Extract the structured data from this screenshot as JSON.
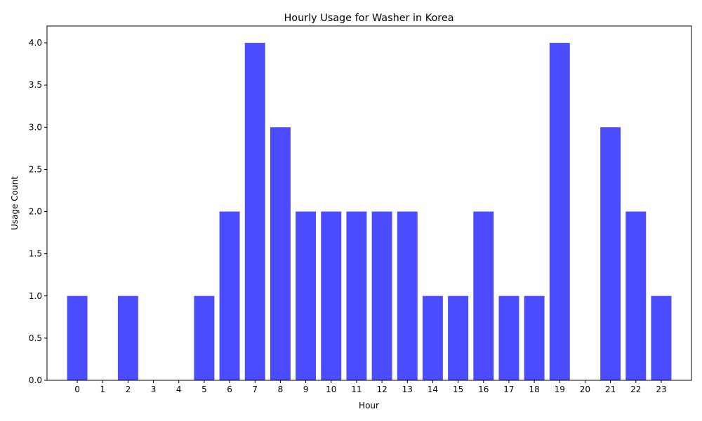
{
  "chart_data": {
    "type": "bar",
    "title": "Hourly Usage for Washer in Korea",
    "xlabel": "Hour",
    "ylabel": "Usage Count",
    "categories": [
      "0",
      "1",
      "2",
      "3",
      "4",
      "5",
      "6",
      "7",
      "8",
      "9",
      "10",
      "11",
      "12",
      "13",
      "14",
      "15",
      "16",
      "17",
      "18",
      "19",
      "20",
      "21",
      "22",
      "23"
    ],
    "values": [
      1,
      0,
      1,
      0,
      0,
      1,
      2,
      4,
      3,
      2,
      2,
      2,
      2,
      2,
      1,
      1,
      2,
      1,
      1,
      4,
      0,
      3,
      2,
      1
    ],
    "ylim": [
      0,
      4.2
    ],
    "yticks": [
      "0.0",
      "0.5",
      "1.0",
      "1.5",
      "2.0",
      "2.5",
      "3.0",
      "3.5",
      "4.0"
    ],
    "bar_color": "#4b4bff",
    "grid": false,
    "legend": "none"
  }
}
